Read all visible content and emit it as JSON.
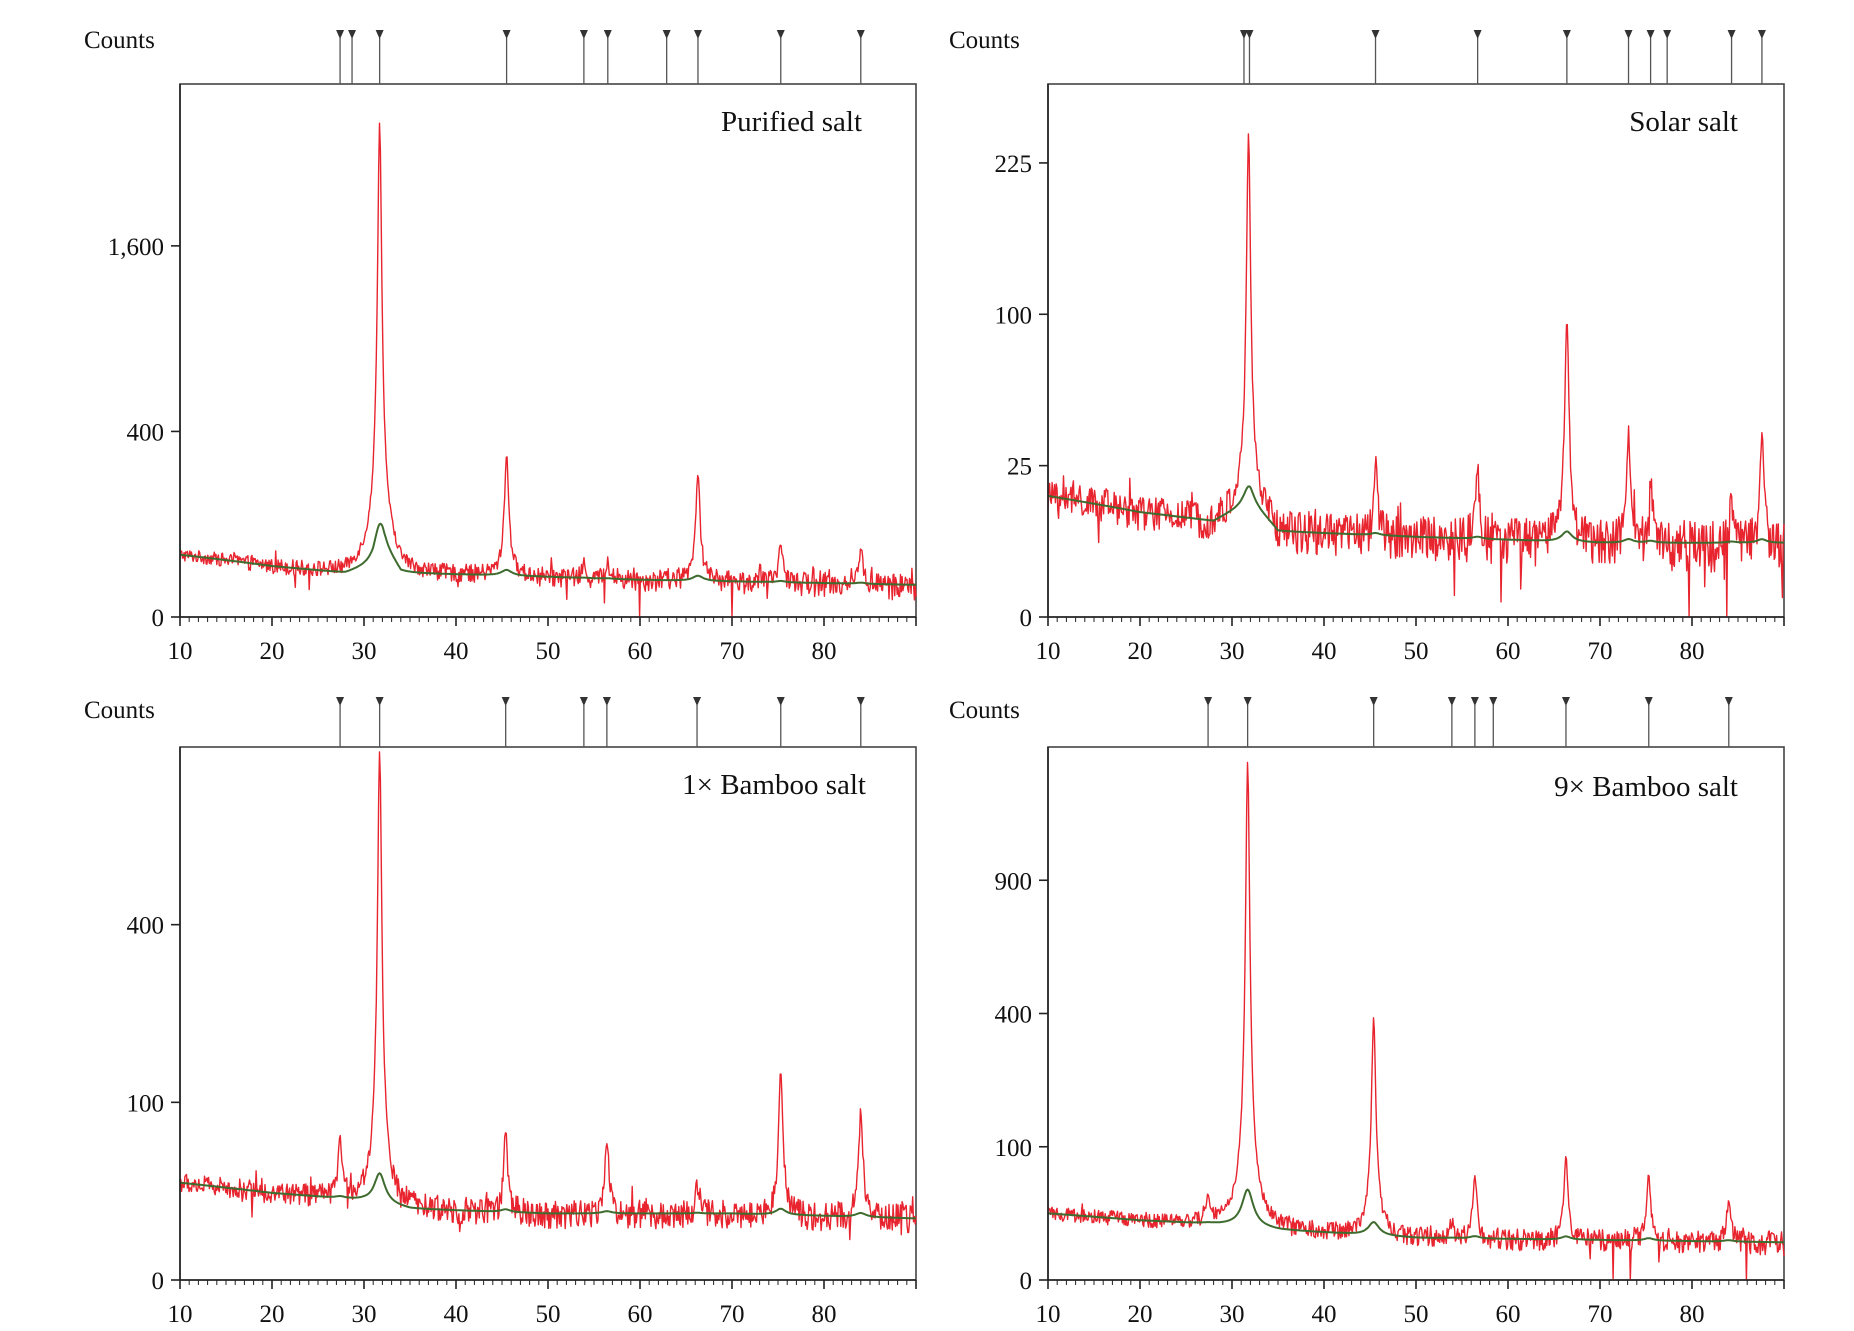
{
  "chart_data": [
    {
      "type": "line",
      "title": "Purified salt",
      "ylabel": "Counts",
      "xlabel": "",
      "xlim": [
        10,
        90
      ],
      "y_scale": "sqrt",
      "ylim": [
        0,
        3300
      ],
      "xticks": [
        "10",
        "20",
        "30",
        "40",
        "50",
        "60",
        "70",
        "80"
      ],
      "yticks": [
        {
          "value": 0,
          "label": "0"
        },
        {
          "value": 400,
          "label": "400"
        },
        {
          "value": 1600,
          "label": "1,600"
        }
      ],
      "baseline": [
        [
          10,
          45
        ],
        [
          20,
          30
        ],
        [
          28,
          22
        ],
        [
          31,
          30
        ],
        [
          32,
          50
        ],
        [
          34,
          22
        ],
        [
          45,
          20
        ],
        [
          60,
          16
        ],
        [
          75,
          14
        ],
        [
          90,
          12
        ]
      ],
      "peaks": [
        {
          "x": 31.7,
          "y": 2800,
          "w": 0.22
        },
        {
          "x": 45.5,
          "y": 290,
          "w": 0.22
        },
        {
          "x": 53.9,
          "y": 15,
          "w": 0.2
        },
        {
          "x": 56.5,
          "y": 20,
          "w": 0.2
        },
        {
          "x": 66.3,
          "y": 230,
          "w": 0.22
        },
        {
          "x": 75.3,
          "y": 55,
          "w": 0.2
        },
        {
          "x": 84.0,
          "y": 45,
          "w": 0.2
        }
      ],
      "noise": 9,
      "reference_markers": [
        27.4,
        28.7,
        31.7,
        45.5,
        53.9,
        56.5,
        62.9,
        66.3,
        75.3,
        84.0
      ],
      "colors": {
        "pattern": "#e8242f",
        "background_fit": "#3e6b2e",
        "markers": "#555555"
      }
    },
    {
      "type": "line",
      "title": "Solar salt",
      "ylabel": "Counts",
      "xlabel": "",
      "xlim": [
        10,
        90
      ],
      "y_scale": "sqrt",
      "ylim": [
        0,
        310
      ],
      "xticks": [
        "10",
        "20",
        "30",
        "40",
        "50",
        "60",
        "70",
        "80"
      ],
      "yticks": [
        {
          "value": 0,
          "label": "0"
        },
        {
          "value": 25,
          "label": "25"
        },
        {
          "value": 100,
          "label": "100"
        },
        {
          "value": 225,
          "label": "225"
        }
      ],
      "baseline": [
        [
          10,
          16
        ],
        [
          20,
          12
        ],
        [
          28,
          10
        ],
        [
          32,
          14
        ],
        [
          35,
          8
        ],
        [
          50,
          7
        ],
        [
          70,
          6
        ],
        [
          90,
          6
        ]
      ],
      "peaks": [
        {
          "x": 31.8,
          "y": 240,
          "w": 0.22
        },
        {
          "x": 45.6,
          "y": 20,
          "w": 0.2
        },
        {
          "x": 56.7,
          "y": 18,
          "w": 0.2
        },
        {
          "x": 66.4,
          "y": 90,
          "w": 0.22
        },
        {
          "x": 73.1,
          "y": 30,
          "w": 0.2
        },
        {
          "x": 75.5,
          "y": 15,
          "w": 0.2
        },
        {
          "x": 84.3,
          "y": 10,
          "w": 0.2
        },
        {
          "x": 87.6,
          "y": 30,
          "w": 0.2
        }
      ],
      "noise": 4,
      "reference_markers": [
        31.3,
        31.9,
        45.6,
        56.7,
        66.4,
        73.1,
        75.5,
        77.3,
        84.3,
        87.6
      ],
      "colors": {
        "pattern": "#e8242f",
        "background_fit": "#3e6b2e",
        "markers": "#555555"
      }
    },
    {
      "type": "line",
      "title": "1× Bamboo salt",
      "ylabel": "Counts",
      "xlabel": "",
      "xlim": [
        10,
        90
      ],
      "y_scale": "sqrt",
      "ylim": [
        0,
        900
      ],
      "xticks": [
        "10",
        "20",
        "30",
        "40",
        "50",
        "60",
        "70",
        "80"
      ],
      "yticks": [
        {
          "value": 0,
          "label": "0"
        },
        {
          "value": 100,
          "label": "100"
        },
        {
          "value": 400,
          "label": "400"
        }
      ],
      "baseline": [
        [
          10,
          30
        ],
        [
          20,
          24
        ],
        [
          30,
          20
        ],
        [
          35,
          16
        ],
        [
          50,
          14
        ],
        [
          70,
          14
        ],
        [
          90,
          12
        ]
      ],
      "peaks": [
        {
          "x": 27.4,
          "y": 45,
          "w": 0.2
        },
        {
          "x": 31.7,
          "y": 870,
          "w": 0.22
        },
        {
          "x": 45.4,
          "y": 60,
          "w": 0.2
        },
        {
          "x": 56.4,
          "y": 50,
          "w": 0.22
        },
        {
          "x": 66.2,
          "y": 15,
          "w": 0.2
        },
        {
          "x": 75.3,
          "y": 130,
          "w": 0.22
        },
        {
          "x": 84.0,
          "y": 80,
          "w": 0.22
        }
      ],
      "noise": 6,
      "reference_markers": [
        27.4,
        31.7,
        45.4,
        53.9,
        56.4,
        66.2,
        75.3,
        84.0
      ],
      "colors": {
        "pattern": "#e8242f",
        "background_fit": "#3e6b2e",
        "markers": "#555555"
      }
    },
    {
      "type": "line",
      "title": "9× Bamboo salt",
      "ylabel": "Counts",
      "xlabel": "",
      "xlim": [
        10,
        90
      ],
      "y_scale": "sqrt",
      "ylim": [
        0,
        1600
      ],
      "xticks": [
        "10",
        "20",
        "30",
        "40",
        "50",
        "60",
        "70",
        "80"
      ],
      "yticks": [
        {
          "value": 0,
          "label": "0"
        },
        {
          "value": 100,
          "label": "100"
        },
        {
          "value": 400,
          "label": "400"
        },
        {
          "value": 900,
          "label": "900"
        }
      ],
      "baseline": [
        [
          10,
          25
        ],
        [
          20,
          20
        ],
        [
          30,
          17
        ],
        [
          35,
          14
        ],
        [
          50,
          10
        ],
        [
          70,
          9
        ],
        [
          90,
          8
        ]
      ],
      "peaks": [
        {
          "x": 27.4,
          "y": 20,
          "w": 0.2
        },
        {
          "x": 31.7,
          "y": 1500,
          "w": 0.22
        },
        {
          "x": 45.4,
          "y": 380,
          "w": 0.22
        },
        {
          "x": 53.9,
          "y": 10,
          "w": 0.2
        },
        {
          "x": 56.4,
          "y": 55,
          "w": 0.2
        },
        {
          "x": 66.3,
          "y": 75,
          "w": 0.2
        },
        {
          "x": 75.3,
          "y": 55,
          "w": 0.2
        },
        {
          "x": 84.0,
          "y": 30,
          "w": 0.22
        }
      ],
      "noise": 5,
      "reference_markers": [
        27.4,
        31.7,
        45.4,
        53.9,
        56.4,
        58.4,
        66.3,
        75.3,
        84.0
      ],
      "colors": {
        "pattern": "#e8242f",
        "background_fit": "#3e6b2e",
        "markers": "#555555"
      }
    }
  ]
}
